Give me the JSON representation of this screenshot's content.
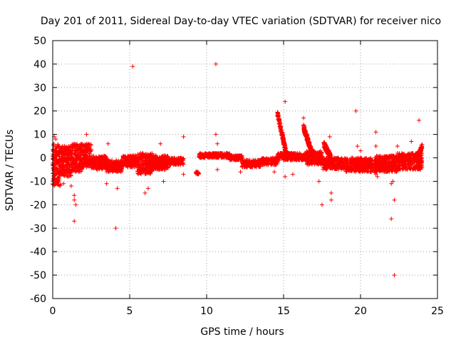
{
  "chart_data": {
    "type": "scatter",
    "title": "Day 201 of 2011, Sidereal Day-to-day VTEC variation (SDTVAR) for receiver nico",
    "xlabel": "GPS time / hours",
    "ylabel": "SDTVAR / TECUs",
    "xlim": [
      0,
      25
    ],
    "ylim": [
      -60,
      50
    ],
    "xticks": [
      0,
      5,
      10,
      15,
      20,
      25
    ],
    "xtick_labels": [
      "0",
      "5",
      "10",
      "15",
      "20",
      "25"
    ],
    "yticks": [
      -60,
      -50,
      -40,
      -30,
      -20,
      -10,
      0,
      10,
      20,
      30,
      40,
      50
    ],
    "ytick_labels": [
      "-60",
      "-50",
      "-40",
      "-30",
      "-20",
      "-10",
      "0",
      "10",
      "20",
      "30",
      "40",
      "50"
    ],
    "grid": true,
    "marker": "+",
    "marker_color": "#ff0000",
    "series": [
      {
        "name": "SDTVAR",
        "color": "#ff0000",
        "bands": [
          {
            "x0": 0.0,
            "x1": 0.5,
            "ymin": -12,
            "ymax": 6
          },
          {
            "x0": 0.5,
            "x1": 1.2,
            "ymin": -8,
            "ymax": 5
          },
          {
            "x0": 1.2,
            "x1": 2.0,
            "ymin": -6,
            "ymax": 6
          },
          {
            "x0": 2.0,
            "x1": 2.5,
            "ymin": -4,
            "ymax": 6
          },
          {
            "x0": 2.5,
            "x1": 3.5,
            "ymin": -5,
            "ymax": 1
          },
          {
            "x0": 3.5,
            "x1": 4.5,
            "ymin": -6,
            "ymax": -1
          },
          {
            "x0": 4.5,
            "x1": 5.5,
            "ymin": -4,
            "ymax": 1
          },
          {
            "x0": 5.5,
            "x1": 6.5,
            "ymin": -7,
            "ymax": 2
          },
          {
            "x0": 6.5,
            "x1": 7.5,
            "ymin": -5,
            "ymax": 1
          },
          {
            "x0": 7.5,
            "x1": 8.5,
            "ymin": -3,
            "ymax": 0
          },
          {
            "x0": 9.3,
            "x1": 9.5,
            "ymin": -7,
            "ymax": -6
          },
          {
            "x0": 9.5,
            "x1": 11.5,
            "ymin": 0,
            "ymax": 2
          },
          {
            "x0": 11.5,
            "x1": 12.3,
            "ymin": -1,
            "ymax": 1
          },
          {
            "x0": 12.3,
            "x1": 13.5,
            "ymin": -4,
            "ymax": -1
          },
          {
            "x0": 13.5,
            "x1": 14.6,
            "ymin": -3,
            "ymax": 0
          },
          {
            "x0": 14.6,
            "x1": 15.0,
            "ymin": -1,
            "ymax": 2
          },
          {
            "x0": 15.0,
            "x1": 16.5,
            "ymin": -1,
            "ymax": 2
          },
          {
            "x0": 16.5,
            "x1": 17.5,
            "ymin": -3,
            "ymax": 3
          },
          {
            "x0": 17.5,
            "x1": 19.0,
            "ymin": -5,
            "ymax": 0
          },
          {
            "x0": 19.0,
            "x1": 21.0,
            "ymin": -6,
            "ymax": 0
          },
          {
            "x0": 21.0,
            "x1": 22.5,
            "ymin": -6,
            "ymax": 1
          },
          {
            "x0": 22.5,
            "x1": 24.0,
            "ymin": -5,
            "ymax": 2
          }
        ],
        "spikes": [
          {
            "x0": 14.6,
            "x1": 15.2,
            "y_start": 19,
            "y_end": 1
          },
          {
            "x0": 16.3,
            "x1": 16.9,
            "y_start": 13,
            "y_end": 1
          },
          {
            "x0": 17.6,
            "x1": 18.1,
            "y_start": 6,
            "y_end": 0
          },
          {
            "x0": 23.7,
            "x1": 24.0,
            "y_start": 0,
            "y_end": 5
          }
        ],
        "points": [
          [
            0.1,
            9
          ],
          [
            0.2,
            8
          ],
          [
            0.7,
            -11
          ],
          [
            1.0,
            -8
          ],
          [
            1.2,
            -12
          ],
          [
            1.4,
            -16
          ],
          [
            1.4,
            -18
          ],
          [
            1.5,
            -20
          ],
          [
            1.4,
            -27
          ],
          [
            2.2,
            10
          ],
          [
            3.4,
            -1
          ],
          [
            3.5,
            -11
          ],
          [
            3.6,
            6
          ],
          [
            4.2,
            -13
          ],
          [
            4.1,
            -30
          ],
          [
            5.2,
            39
          ],
          [
            5.7,
            2
          ],
          [
            6.0,
            -15
          ],
          [
            6.2,
            -13
          ],
          [
            7.0,
            6
          ],
          [
            7.2,
            -10
          ],
          [
            8.5,
            9
          ],
          [
            8.5,
            -7
          ],
          [
            9.3,
            -6
          ],
          [
            10.6,
            40
          ],
          [
            10.6,
            10
          ],
          [
            10.7,
            6
          ],
          [
            10.7,
            -5
          ],
          [
            12.2,
            -6
          ],
          [
            14.4,
            -6
          ],
          [
            15.1,
            24
          ],
          [
            15.1,
            -8
          ],
          [
            15.6,
            -7
          ],
          [
            16.3,
            17
          ],
          [
            17.3,
            -10
          ],
          [
            17.5,
            -20
          ],
          [
            18.0,
            9
          ],
          [
            18.1,
            -15
          ],
          [
            18.1,
            -18
          ],
          [
            19.7,
            20
          ],
          [
            19.8,
            5
          ],
          [
            20.0,
            3
          ],
          [
            21.0,
            11
          ],
          [
            21.0,
            5
          ],
          [
            21.0,
            -7
          ],
          [
            21.1,
            -8
          ],
          [
            22.0,
            -26
          ],
          [
            22.0,
            -11
          ],
          [
            22.1,
            -10
          ],
          [
            22.2,
            -18
          ],
          [
            22.2,
            -50
          ],
          [
            22.4,
            5
          ],
          [
            22.4,
            2
          ],
          [
            23.8,
            16
          ],
          [
            23.3,
            7
          ]
        ]
      }
    ]
  }
}
